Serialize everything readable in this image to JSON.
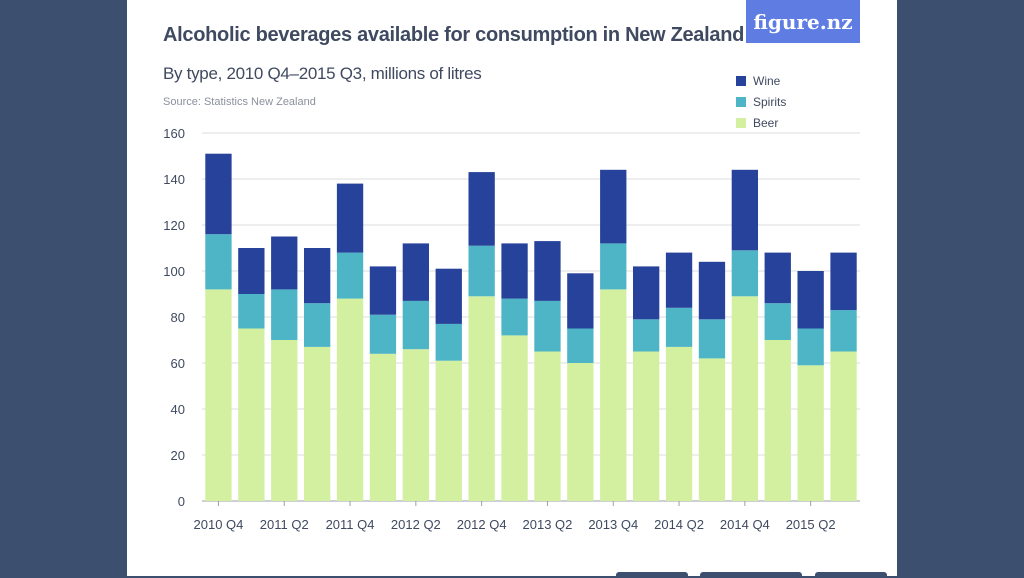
{
  "header": {
    "title": "Alcoholic beverages available for consumption in New Zealand",
    "subtitle": "By type, 2010 Q4–2015 Q3, millions of litres",
    "source": "Source: Statistics New Zealand",
    "logo": "figure.nz"
  },
  "colors": {
    "background": "#3c4f6e",
    "card": "#ffffff",
    "beer": "#d3f0a1",
    "spirits": "#4eb5c7",
    "wine": "#27429a",
    "logo": "#5f7ce3",
    "text": "#3f4a60",
    "grid": "#dcdcdc"
  },
  "chart_data": {
    "type": "bar",
    "stacked": true,
    "categories": [
      "2010 Q4",
      "2011 Q1",
      "2011 Q2",
      "2011 Q3",
      "2011 Q4",
      "2012 Q1",
      "2012 Q2",
      "2012 Q3",
      "2012 Q4",
      "2013 Q1",
      "2013 Q2",
      "2013 Q3",
      "2013 Q4",
      "2014 Q1",
      "2014 Q2",
      "2014 Q3",
      "2014 Q4",
      "2015 Q1",
      "2015 Q2",
      "2015 Q3"
    ],
    "tick_labels": [
      "2010 Q4",
      "",
      "2011 Q2",
      "",
      "2011 Q4",
      "",
      "2012 Q2",
      "",
      "2012 Q4",
      "",
      "2013 Q2",
      "",
      "2013 Q4",
      "",
      "2014 Q2",
      "",
      "2014 Q4",
      "",
      "2015 Q2",
      ""
    ],
    "series": [
      {
        "name": "Beer",
        "color": "#d3f0a1",
        "values": [
          92,
          75,
          70,
          67,
          88,
          64,
          66,
          61,
          89,
          72,
          65,
          60,
          92,
          65,
          67,
          62,
          89,
          70,
          59,
          65
        ]
      },
      {
        "name": "Spirits",
        "color": "#4eb5c7",
        "values": [
          24,
          15,
          22,
          19,
          20,
          17,
          21,
          16,
          22,
          16,
          22,
          15,
          20,
          14,
          17,
          17,
          20,
          16,
          16,
          18
        ]
      },
      {
        "name": "Wine",
        "color": "#27429a",
        "values": [
          35,
          20,
          23,
          24,
          30,
          21,
          25,
          24,
          32,
          24,
          26,
          24,
          32,
          23,
          24,
          25,
          35,
          22,
          25,
          25
        ]
      }
    ],
    "legend_order": [
      "Wine",
      "Spirits",
      "Beer"
    ],
    "legend_position": "top-right",
    "ylim": [
      0,
      160
    ],
    "yticks": [
      0,
      20,
      40,
      60,
      80,
      100,
      120,
      140,
      160
    ],
    "grid": true,
    "xlabel": "",
    "ylabel": ""
  }
}
